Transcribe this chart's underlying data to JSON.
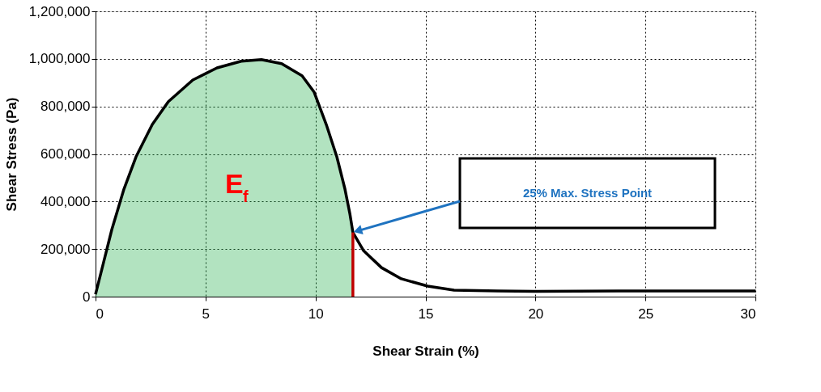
{
  "chart_data": {
    "type": "line",
    "xlabel": "Shear Strain (%)",
    "ylabel": "Shear Stress (Pa)",
    "xlim": [
      0,
      30
    ],
    "xticks": [
      0,
      5,
      10,
      15,
      20,
      25,
      30
    ],
    "ylim": [
      0,
      1200000
    ],
    "yticks": [
      0,
      {
        "value": 200000,
        "label": "200,000"
      },
      {
        "value": 400000,
        "label": "400,000"
      },
      {
        "value": 600000,
        "label": "600,000"
      },
      {
        "value": 800000,
        "label": "800,000"
      },
      {
        "value": 1000000,
        "label": "1,000,000"
      },
      {
        "value": 1200000,
        "label": "1,200,000"
      }
    ],
    "grid": true,
    "line_style": "solid",
    "marker": "none",
    "series": [
      {
        "type": "area",
        "color": "#22b04b",
        "x": [
          0,
          0.37,
          0.74,
          1.29,
          1.84,
          2.58,
          3.31,
          4.42,
          5.52,
          6.62,
          7.54,
          8.46,
          9.39,
          9.94,
          10.49,
          10.97,
          11.34,
          11.56,
          11.7
        ],
        "values": [
          10000,
          146000,
          282000,
          452000,
          588000,
          724000,
          820000,
          911000,
          962000,
          990000,
          997000,
          980000,
          929000,
          860000,
          724000,
          588000,
          452000,
          350000,
          270000
        ]
      },
      {
        "color": "#000000",
        "x": [
          0,
          0.37,
          0.74,
          1.29,
          1.84,
          2.58,
          3.31,
          4.42,
          5.52,
          6.62,
          7.54,
          8.46,
          9.39,
          9.94,
          10.49,
          10.97,
          11.34,
          11.56,
          11.7,
          12.18,
          13.0,
          13.9,
          15.1,
          16.3,
          18.3,
          20,
          25,
          30
        ],
        "values": [
          10000,
          146000,
          282000,
          452000,
          588000,
          724000,
          820000,
          911000,
          962000,
          990000,
          997000,
          980000,
          929000,
          860000,
          724000,
          588000,
          452000,
          350000,
          270000,
          194000,
          122000,
          75000,
          44000,
          27000,
          24000,
          22000,
          24000,
          24000
        ]
      },
      {
        "color": "#c00000",
        "x": [
          11.7,
          11.7
        ],
        "values": [
          0,
          270000
        ]
      }
    ],
    "annotations": [
      "E$_{f}$",
      "25% Max. Stress Point"
    ]
  }
}
